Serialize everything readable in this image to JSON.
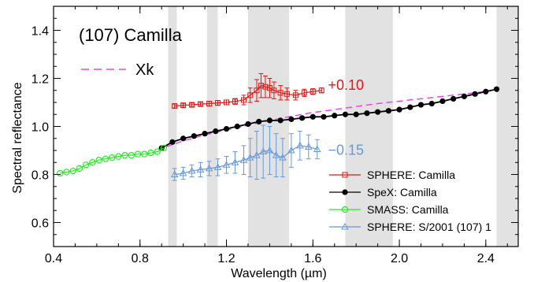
{
  "chart_data": {
    "type": "line",
    "title": "(107) Camilla",
    "xlabel": "Wavelength (µm)",
    "ylabel": "Spectral reflectance",
    "xlim": [
      0.4,
      2.55
    ],
    "ylim": [
      0.5,
      1.5
    ],
    "xticks": [
      0.4,
      0.8,
      1.2,
      1.6,
      2.0,
      2.4
    ],
    "xtick_labels": [
      "0.4",
      "0.8",
      "1.2",
      "1.6",
      "2.0",
      "2.4"
    ],
    "yticks": [
      0.6,
      0.8,
      1.0,
      1.2,
      1.4
    ],
    "ytick_labels": [
      "0.6",
      "0.8",
      "1.0",
      "1.2",
      "1.4"
    ],
    "grid": false,
    "legend_position": "bottom-right",
    "shaded_bands": [
      [
        0.93,
        0.97
      ],
      [
        1.11,
        1.16
      ],
      [
        1.3,
        1.49
      ],
      [
        1.75,
        1.97
      ],
      [
        2.45,
        2.55
      ]
    ],
    "annotations": [
      {
        "text": "+0.10",
        "x": 1.67,
        "y": 1.175,
        "color": "#ee1111"
      },
      {
        "text": "−0.15",
        "x": 1.67,
        "y": 0.905,
        "color": "#6699dd"
      }
    ],
    "reference": {
      "name": "Xk",
      "color": "#ee44ee",
      "x": [
        0.92,
        1.0,
        1.1,
        1.2,
        1.3,
        1.4,
        1.5,
        1.6,
        1.7,
        1.8,
        1.9,
        2.0,
        2.1,
        2.2,
        2.3,
        2.42
      ],
      "y": [
        0.915,
        0.94,
        0.965,
        0.985,
        1.005,
        1.025,
        1.042,
        1.058,
        1.07,
        1.083,
        1.095,
        1.105,
        1.115,
        1.125,
        1.135,
        1.148
      ]
    },
    "series": [
      {
        "name": "SPHERE: Camilla",
        "color": "#ee1111",
        "marker": "square",
        "x": [
          0.96,
          1.0,
          1.04,
          1.08,
          1.12,
          1.16,
          1.2,
          1.24,
          1.28,
          1.31,
          1.34,
          1.36,
          1.38,
          1.4,
          1.42,
          1.45,
          1.48,
          1.52,
          1.56,
          1.6,
          1.64
        ],
        "y": [
          1.085,
          1.088,
          1.09,
          1.093,
          1.095,
          1.098,
          1.1,
          1.104,
          1.11,
          1.13,
          1.15,
          1.17,
          1.165,
          1.16,
          1.15,
          1.14,
          1.135,
          1.13,
          1.14,
          1.145,
          1.15
        ],
        "err": [
          0.008,
          0.008,
          0.008,
          0.008,
          0.01,
          0.01,
          0.01,
          0.012,
          0.02,
          0.03,
          0.045,
          0.05,
          0.045,
          0.04,
          0.035,
          0.03,
          0.025,
          0.02,
          0.015,
          0.012,
          0.01
        ]
      },
      {
        "name": "SpeX: Camilla",
        "color": "#000000",
        "marker": "dot",
        "x": [
          0.9,
          0.95,
          1.0,
          1.05,
          1.1,
          1.15,
          1.2,
          1.25,
          1.3,
          1.35,
          1.4,
          1.45,
          1.5,
          1.55,
          1.6,
          1.65,
          1.7,
          1.75,
          1.8,
          1.85,
          1.9,
          1.95,
          2.0,
          2.05,
          2.1,
          2.15,
          2.2,
          2.25,
          2.3,
          2.35,
          2.4,
          2.45
        ],
        "y": [
          0.91,
          0.935,
          0.95,
          0.96,
          0.97,
          0.98,
          0.99,
          1.0,
          1.01,
          1.02,
          1.025,
          1.025,
          1.03,
          1.035,
          1.04,
          1.04,
          1.045,
          1.05,
          1.05,
          1.055,
          1.06,
          1.065,
          1.07,
          1.08,
          1.09,
          1.095,
          1.105,
          1.115,
          1.125,
          1.135,
          1.145,
          1.155
        ]
      },
      {
        "name": "SMASS: Camilla",
        "color": "#22ee22",
        "marker": "circle",
        "x": [
          0.43,
          0.46,
          0.49,
          0.52,
          0.55,
          0.58,
          0.61,
          0.64,
          0.67,
          0.7,
          0.73,
          0.76,
          0.79,
          0.82,
          0.85,
          0.88,
          0.91
        ],
        "y": [
          0.805,
          0.81,
          0.815,
          0.825,
          0.84,
          0.85,
          0.86,
          0.865,
          0.87,
          0.875,
          0.88,
          0.88,
          0.885,
          0.885,
          0.89,
          0.895,
          0.91
        ]
      },
      {
        "name": "SPHERE: S/2001 (107) 1",
        "color": "#6699dd",
        "marker": "triangle",
        "x": [
          0.96,
          1.0,
          1.04,
          1.08,
          1.12,
          1.16,
          1.2,
          1.24,
          1.28,
          1.31,
          1.34,
          1.37,
          1.4,
          1.43,
          1.46,
          1.5,
          1.54,
          1.58,
          1.62
        ],
        "y": [
          0.8,
          0.805,
          0.815,
          0.82,
          0.825,
          0.83,
          0.84,
          0.85,
          0.86,
          0.87,
          0.88,
          0.895,
          0.9,
          0.88,
          0.87,
          0.9,
          0.92,
          0.915,
          0.905
        ],
        "err": [
          0.025,
          0.025,
          0.025,
          0.03,
          0.03,
          0.035,
          0.035,
          0.045,
          0.06,
          0.08,
          0.1,
          0.11,
          0.1,
          0.09,
          0.08,
          0.07,
          0.06,
          0.05,
          0.04
        ]
      }
    ]
  }
}
